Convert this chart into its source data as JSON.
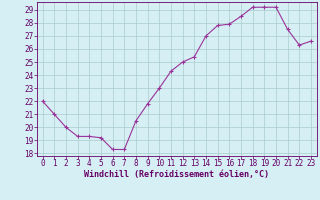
{
  "x": [
    0,
    1,
    2,
    3,
    4,
    5,
    6,
    7,
    8,
    9,
    10,
    11,
    12,
    13,
    14,
    15,
    16,
    17,
    18,
    19,
    20,
    21,
    22,
    23
  ],
  "y": [
    22,
    21,
    20,
    19.3,
    19.3,
    19.2,
    18.3,
    18.3,
    20.5,
    21.8,
    23.0,
    24.3,
    25.0,
    25.4,
    27.0,
    27.8,
    27.9,
    28.5,
    29.2,
    29.2,
    29.2,
    27.5,
    26.3,
    26.6
  ],
  "line_color": "#993399",
  "marker": "+",
  "background_color": "#d6eff5",
  "grid_color": "#aacccc",
  "xlabel": "Windchill (Refroidissement éolien,°C)",
  "ylabel": "",
  "title": "",
  "xlim": [
    -0.5,
    23.5
  ],
  "ylim": [
    17.8,
    29.6
  ],
  "yticks": [
    18,
    19,
    20,
    21,
    22,
    23,
    24,
    25,
    26,
    27,
    28,
    29
  ],
  "xticks": [
    0,
    1,
    2,
    3,
    4,
    5,
    6,
    7,
    8,
    9,
    10,
    11,
    12,
    13,
    14,
    15,
    16,
    17,
    18,
    19,
    20,
    21,
    22,
    23
  ],
  "label_color": "#660066",
  "tick_color": "#660066",
  "font_size": 5.5,
  "xlabel_fontsize": 6.0
}
